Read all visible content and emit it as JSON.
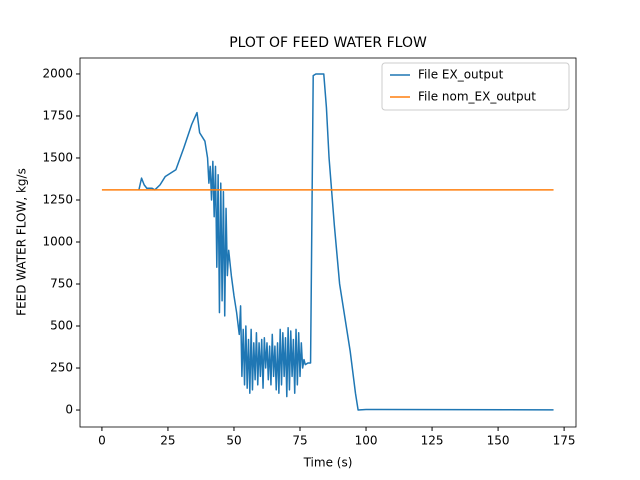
{
  "chart_data": {
    "type": "line",
    "title": "PLOT OF FEED WATER FLOW",
    "x_label": "Time (s)",
    "y_label": "FEED WATER FLOW, kg/s",
    "xlim": [
      -8.3,
      179.5
    ],
    "ylim": [
      -101,
      2095
    ],
    "xticks": [
      0,
      25,
      50,
      75,
      100,
      125,
      150,
      175
    ],
    "yticks": [
      0,
      250,
      500,
      750,
      1000,
      1250,
      1500,
      1750,
      2000
    ],
    "legend": "upper right",
    "series": [
      {
        "name": "File EX_output",
        "color": "#1f77b4",
        "x": [
          14,
          15,
          16,
          17,
          19,
          20,
          22,
          24,
          28,
          31,
          34,
          36,
          37,
          39,
          40,
          40.5,
          41,
          41.5,
          42,
          42.5,
          43,
          43.5,
          44,
          44.5,
          45,
          45.5,
          46,
          46.5,
          47,
          47.5,
          48,
          49,
          50,
          51,
          52,
          52.5,
          53,
          53.5,
          54,
          54.5,
          55,
          55.5,
          56,
          56.5,
          57,
          57.5,
          58,
          58.5,
          59,
          59.5,
          60,
          60.5,
          61,
          61.5,
          62,
          62.5,
          63,
          63.5,
          64,
          64.5,
          65,
          65.5,
          66,
          66.5,
          67,
          67.5,
          68,
          68.5,
          69,
          69.5,
          70,
          70.5,
          71,
          71.5,
          72,
          72.5,
          73,
          73.5,
          74,
          74.5,
          75,
          75.5,
          76,
          76.5,
          77,
          78,
          79,
          80,
          81,
          84,
          85,
          86,
          88,
          90,
          92,
          94,
          96,
          97,
          100,
          171
        ],
        "values": [
          1310,
          1380,
          1340,
          1320,
          1320,
          1310,
          1340,
          1390,
          1430,
          1560,
          1700,
          1770,
          1650,
          1600,
          1500,
          1350,
          1450,
          1250,
          1480,
          1150,
          1450,
          850,
          1400,
          580,
          1350,
          650,
          1300,
          560,
          1200,
          800,
          950,
          800,
          680,
          580,
          450,
          620,
          200,
          480,
          150,
          500,
          130,
          420,
          100,
          480,
          120,
          400,
          180,
          460,
          150,
          400,
          200,
          420,
          130,
          430,
          250,
          400,
          180,
          380,
          150,
          450,
          200,
          380,
          120,
          400,
          100,
          480,
          150,
          460,
          200,
          430,
          80,
          490,
          120,
          470,
          200,
          420,
          100,
          480,
          150,
          460,
          200,
          400,
          250,
          300,
          270,
          280,
          280,
          1990,
          2000,
          2000,
          1800,
          1500,
          1100,
          750,
          550,
          350,
          100,
          0,
          3,
          1
        ]
      },
      {
        "name": "File nom_EX_output",
        "color": "#ff7f0e",
        "x": [
          0,
          171
        ],
        "values": [
          1310,
          1310
        ]
      }
    ]
  }
}
